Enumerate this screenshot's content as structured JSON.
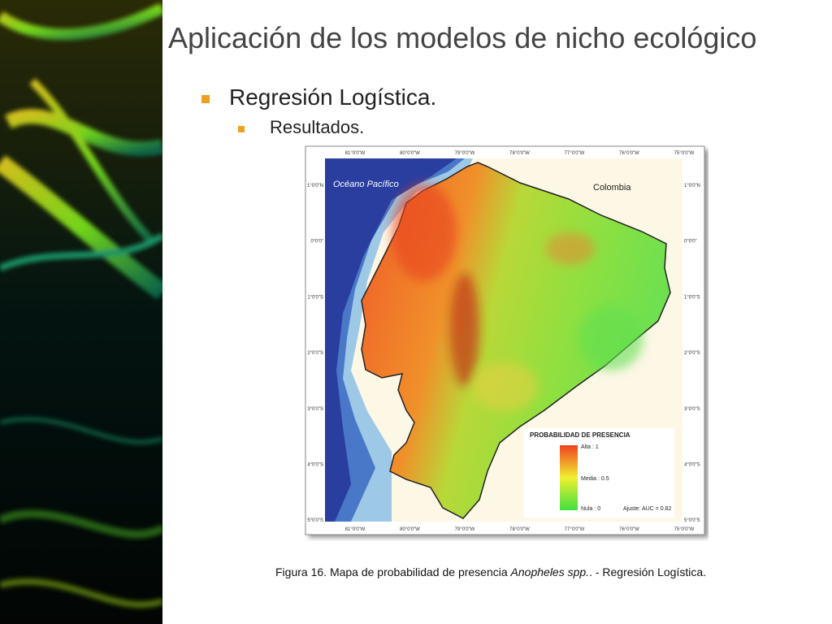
{
  "header": {
    "title": "Aplicación de los modelos de nicho ecológico"
  },
  "bullets": [
    "Regresión Logística."
  ],
  "sub_bullets": [
    "Resultados."
  ],
  "map": {
    "longitude_labels": [
      "81°0'0\"W",
      "80°0'0\"W",
      "79°0'0\"W",
      "78°0'0\"W",
      "77°0'0\"W",
      "76°0'0\"W",
      "75°0'0\"W"
    ],
    "latitude_labels": [
      "1°0'0\"N",
      "0°0'0\"",
      "1°0'0\"S",
      "2°0'0\"S",
      "3°0'0\"S",
      "4°0'0\"S",
      "5°0'0\"S"
    ],
    "ocean_label": "Océano Pacífico",
    "country_label": "Colombia",
    "legend": {
      "title": "PROBABILIDAD DE PRESENCIA",
      "high": "Alta : 1",
      "medium": "Media : 0.5",
      "low": "Nula : 0",
      "fit": "Ajuste: AUC = 0.82"
    }
  },
  "caption": {
    "label": "Figura 16.",
    "text": "Mapa de probabilidad de presencia",
    "species": "Anopheles spp.",
    "suffix": ". - Regresión Logística."
  }
}
